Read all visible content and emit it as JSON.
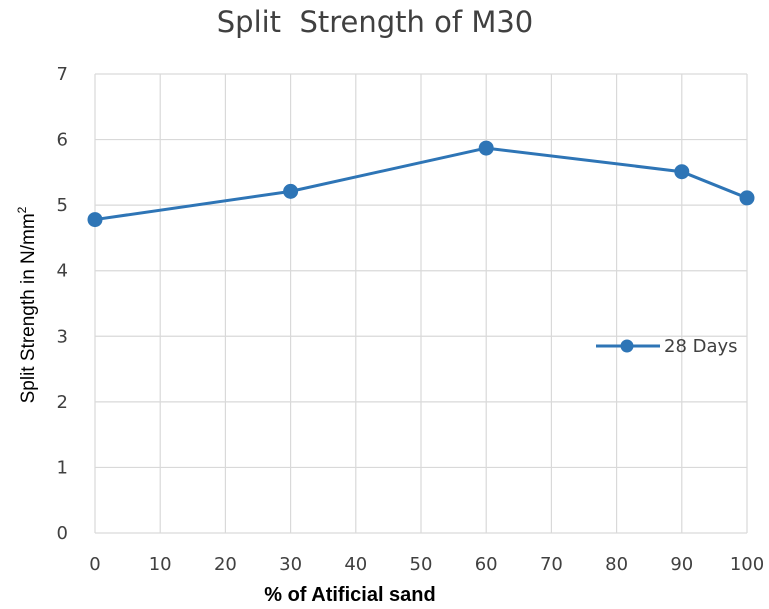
{
  "chart_data": {
    "type": "line",
    "title": "Split  Strength of M30",
    "xlabel": "% of Atificial sand",
    "ylabel": "Split Strength in N/mm",
    "ylabel_superscript": "2",
    "xlim": [
      0,
      100
    ],
    "ylim": [
      0,
      7
    ],
    "x_ticks": [
      "0",
      "10",
      "20",
      "30",
      "40",
      "50",
      "60",
      "70",
      "80",
      "90",
      "100"
    ],
    "y_ticks": [
      "0",
      "1",
      "2",
      "3",
      "4",
      "5",
      "6",
      "7"
    ],
    "grid": true,
    "legend_position": "right",
    "series": [
      {
        "name": "28 Days",
        "color": "#2e75b6",
        "x": [
          0,
          30,
          60,
          90,
          100
        ],
        "y": [
          4.78,
          5.21,
          5.87,
          5.51,
          5.11
        ]
      }
    ]
  }
}
